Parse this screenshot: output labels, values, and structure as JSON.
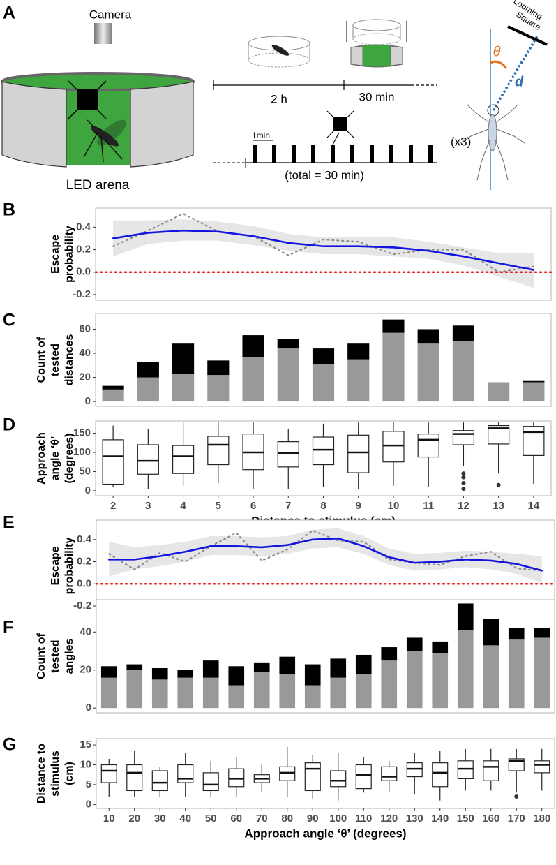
{
  "diagram": {
    "panel_label": "A",
    "camera": "Camera",
    "arena": "LED arena",
    "duration_1": "2 h",
    "duration_2": "30 min",
    "interval": "1min",
    "repeat": "(x3)",
    "total": "(total = 30 min)",
    "stimulus": [
      "Looming",
      "Square"
    ],
    "angle_symbol": "θ",
    "distance_symbol": "d"
  },
  "chart_data": [
    {
      "type": "line",
      "panel_label": "B",
      "ylabel": [
        "Escape",
        "probability"
      ],
      "ylim": [
        -0.25,
        0.57
      ],
      "yticks": [
        -0.2,
        {
          "value": 0,
          "label": "0.0"
        },
        0.2,
        0.4
      ],
      "band": {
        "color": "#e6e6e6",
        "lower": [
          0.14,
          0.25,
          0.28,
          0.28,
          0.24,
          0.19,
          0.16,
          0.16,
          0.14,
          0.12,
          0.06,
          -0.04,
          -0.14
        ],
        "upper": [
          0.46,
          0.46,
          0.47,
          0.45,
          0.41,
          0.34,
          0.31,
          0.31,
          0.31,
          0.27,
          0.22,
          0.17,
          0.17
        ]
      },
      "hline": {
        "value": 0,
        "color": "#e8231f",
        "dash": "dotted"
      },
      "series": [
        {
          "color": "#8c8c8c",
          "dash": "dotted",
          "values": [
            0.23,
            0.37,
            0.52,
            0.36,
            0.32,
            0.15,
            0.29,
            0.27,
            0.16,
            0.2,
            0.2,
            0,
            0.05
          ]
        },
        {
          "color": "#1414e0",
          "values": [
            0.3,
            0.35,
            0.37,
            0.36,
            0.32,
            0.26,
            0.23,
            0.23,
            0.22,
            0.19,
            0.14,
            0.08,
            0.02
          ]
        }
      ]
    },
    {
      "type": "bar",
      "panel_label": "C",
      "ylabel": [
        "Count of",
        "tested",
        "distances"
      ],
      "ylim": [
        -4,
        73
      ],
      "yticks": [
        0,
        20,
        40,
        60
      ],
      "stacked": true,
      "series": [
        {
          "color": "#999999",
          "values": [
            10,
            20,
            23,
            22,
            37,
            44,
            31,
            35,
            57,
            48,
            50,
            16,
            16
          ]
        },
        {
          "color": "#000000",
          "values": [
            3,
            13,
            25,
            12,
            18,
            8,
            13,
            13,
            11,
            12,
            13,
            0,
            1
          ]
        }
      ]
    },
    {
      "type": "box",
      "panel_label": "D",
      "ylabel": [
        "Approach",
        "angle ‘θ’",
        "(degrees)"
      ],
      "xlabel": "Distance to stimulus (cm)",
      "ylim": [
        -13,
        182
      ],
      "yticks": [
        0,
        50,
        100,
        150
      ],
      "categories": [
        "2",
        "3",
        "4",
        "5",
        "6",
        "7",
        "8",
        "9",
        "10",
        "11",
        "12",
        "13",
        "14"
      ],
      "boxes": [
        {
          "min": 10,
          "q1": 17,
          "median": 90,
          "q3": 133,
          "max": 170,
          "outliers": []
        },
        {
          "min": 5,
          "q1": 43,
          "median": 78,
          "q3": 120,
          "max": 160,
          "outliers": []
        },
        {
          "min": 13,
          "q1": 45,
          "median": 90,
          "q3": 118,
          "max": 180,
          "outliers": []
        },
        {
          "min": 20,
          "q1": 68,
          "median": 120,
          "q3": 142,
          "max": 180,
          "outliers": []
        },
        {
          "min": 5,
          "q1": 55,
          "median": 100,
          "q3": 148,
          "max": 178,
          "outliers": []
        },
        {
          "min": 5,
          "q1": 62,
          "median": 98,
          "q3": 128,
          "max": 162,
          "outliers": []
        },
        {
          "min": 10,
          "q1": 68,
          "median": 107,
          "q3": 140,
          "max": 175,
          "outliers": []
        },
        {
          "min": 5,
          "q1": 47,
          "median": 100,
          "q3": 145,
          "max": 178,
          "outliers": []
        },
        {
          "min": 13,
          "q1": 75,
          "median": 118,
          "q3": 155,
          "max": 180,
          "outliers": []
        },
        {
          "min": 10,
          "q1": 88,
          "median": 133,
          "q3": 148,
          "max": 178,
          "outliers": []
        },
        {
          "min": 65,
          "q1": 120,
          "median": 148,
          "q3": 157,
          "max": 178,
          "outliers": [
            45,
            35,
            20,
            5
          ]
        },
        {
          "min": 45,
          "q1": 122,
          "median": 163,
          "q3": 170,
          "max": 180,
          "outliers": [
            15
          ]
        },
        {
          "min": 18,
          "q1": 92,
          "median": 153,
          "q3": 168,
          "max": 178,
          "outliers": []
        }
      ]
    },
    {
      "type": "line",
      "panel_label": "E",
      "ylabel": [
        "Escape",
        "probability"
      ],
      "ylim": [
        -0.25,
        0.575
      ],
      "yticks": [
        -0.2,
        {
          "value": 0,
          "label": "0.0"
        },
        0.2,
        0.4
      ],
      "band": {
        "color": "#e6e6e6",
        "lower": [
          0.07,
          0.13,
          0.16,
          0.2,
          0.26,
          0.26,
          0.25,
          0.27,
          0.32,
          0.33,
          0.27,
          0.17,
          0.12,
          0.13,
          0.15,
          0.13,
          0.09,
          0.01
        ],
        "upper": [
          0.38,
          0.33,
          0.35,
          0.38,
          0.43,
          0.43,
          0.42,
          0.43,
          0.49,
          0.5,
          0.43,
          0.32,
          0.27,
          0.28,
          0.3,
          0.29,
          0.27,
          0.25
        ]
      },
      "hline": {
        "value": 0,
        "color": "#e8231f",
        "dash": "dotted"
      },
      "series": [
        {
          "color": "#8c8c8c",
          "dash": "dotted",
          "values": [
            0.27,
            0.13,
            0.28,
            0.2,
            0.34,
            0.46,
            0.21,
            0.31,
            0.48,
            0.39,
            0.38,
            0.22,
            0.19,
            0.17,
            0.25,
            0.29,
            0.14,
            0.12
          ]
        },
        {
          "color": "#1414e0",
          "values": [
            0.22,
            0.22,
            0.25,
            0.29,
            0.34,
            0.34,
            0.33,
            0.35,
            0.4,
            0.41,
            0.34,
            0.24,
            0.19,
            0.2,
            0.22,
            0.21,
            0.18,
            0.12
          ]
        }
      ]
    },
    {
      "type": "bar",
      "panel_label": "F",
      "ylabel": [
        "Count of",
        "tested",
        "angles"
      ],
      "ylim": [
        -2.5,
        57
      ],
      "yticks": [
        0,
        20,
        40
      ],
      "stacked": true,
      "series": [
        {
          "color": "#999999",
          "values": [
            16,
            20,
            15,
            16,
            16,
            12,
            19,
            18,
            12,
            16,
            18,
            25,
            30,
            29,
            41,
            33,
            36,
            37
          ]
        },
        {
          "color": "#000000",
          "values": [
            6,
            3,
            6,
            4,
            9,
            10,
            5,
            9,
            11,
            10,
            10,
            7,
            7,
            6,
            14,
            14,
            6,
            5
          ]
        }
      ]
    },
    {
      "type": "box",
      "panel_label": "G",
      "ylabel": [
        "Distance to",
        "stimulus",
        "(cm)"
      ],
      "xlabel": "Approach angle ‘θ’ (degrees)",
      "ylim": [
        -1,
        16.6
      ],
      "yticks": [
        0,
        5,
        10,
        15
      ],
      "categories": [
        "10",
        "20",
        "30",
        "40",
        "50",
        "60",
        "70",
        "80",
        "90",
        "100",
        "110",
        "120",
        "130",
        "140",
        "150",
        "160",
        "170",
        "180"
      ],
      "boxes": [
        {
          "min": 2,
          "q1": 5.5,
          "median": 8.5,
          "q3": 10,
          "max": 11.5,
          "outliers": []
        },
        {
          "min": 2,
          "q1": 3.5,
          "median": 8,
          "q3": 10,
          "max": 13.5,
          "outliers": []
        },
        {
          "min": 2,
          "q1": 3.5,
          "median": 5.5,
          "q3": 8.5,
          "max": 9.5,
          "outliers": []
        },
        {
          "min": 2,
          "q1": 5.5,
          "median": 6.5,
          "q3": 10,
          "max": 13,
          "outliers": []
        },
        {
          "min": 2,
          "q1": 3.5,
          "median": 5,
          "q3": 8,
          "max": 11,
          "outliers": []
        },
        {
          "min": 2,
          "q1": 4.5,
          "median": 6.5,
          "q3": 9,
          "max": 12,
          "outliers": []
        },
        {
          "min": 3,
          "q1": 5.5,
          "median": 6.5,
          "q3": 7.5,
          "max": 10,
          "outliers": []
        },
        {
          "min": 2,
          "q1": 6,
          "median": 8,
          "q3": 9.5,
          "max": 14.5,
          "outliers": []
        },
        {
          "min": 1.5,
          "q1": 3.5,
          "median": 9,
          "q3": 10.5,
          "max": 12.5,
          "outliers": []
        },
        {
          "min": 1,
          "q1": 4.5,
          "median": 6,
          "q3": 8.5,
          "max": 13,
          "outliers": []
        },
        {
          "min": 3,
          "q1": 4,
          "median": 7.5,
          "q3": 10,
          "max": 12,
          "outliers": []
        },
        {
          "min": 3,
          "q1": 6,
          "median": 7,
          "q3": 9.5,
          "max": 11,
          "outliers": []
        },
        {
          "min": 2.5,
          "q1": 7,
          "median": 9,
          "q3": 10.5,
          "max": 13,
          "outliers": []
        },
        {
          "min": 1,
          "q1": 4.5,
          "median": 8,
          "q3": 10.5,
          "max": 13.5,
          "outliers": []
        },
        {
          "min": 3.5,
          "q1": 6.5,
          "median": 9,
          "q3": 11,
          "max": 14,
          "outliers": []
        },
        {
          "min": 3.5,
          "q1": 6,
          "median": 9.5,
          "q3": 11,
          "max": 14,
          "outliers": []
        },
        {
          "min": 3,
          "q1": 8.5,
          "median": 11,
          "q3": 11.5,
          "max": 14,
          "outliers": [
            2
          ]
        },
        {
          "min": 3.5,
          "q1": 8,
          "median": 10,
          "q3": 11,
          "max": 14,
          "outliers": []
        }
      ]
    }
  ]
}
